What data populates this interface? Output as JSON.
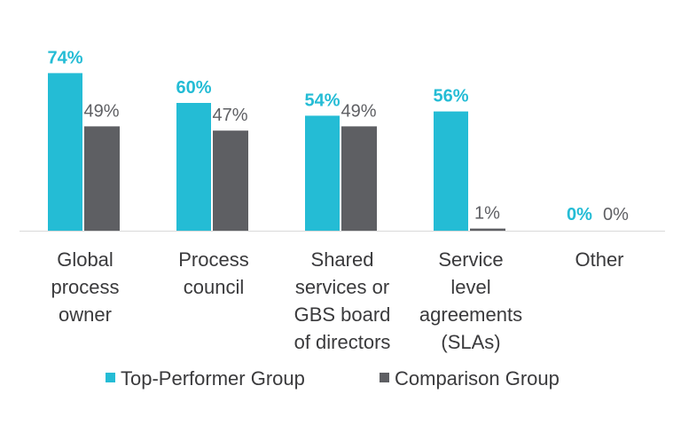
{
  "chart_data": {
    "type": "bar",
    "categories": [
      [
        "Global",
        "process",
        "owner"
      ],
      [
        "Process",
        "council"
      ],
      [
        "Shared",
        "services or",
        "GBS board",
        "of directors"
      ],
      [
        "Service",
        "level",
        "agreements",
        "(SLAs)"
      ],
      [
        "Other"
      ]
    ],
    "series": [
      {
        "name": "Top-Performer Group",
        "color": "#24BCD5",
        "values": [
          74,
          60,
          54,
          56,
          0
        ],
        "labels": [
          "74%",
          "60%",
          "54%",
          "56%",
          "0%"
        ]
      },
      {
        "name": "Comparison Group",
        "color": "#5E5F63",
        "values": [
          49,
          47,
          49,
          1,
          0
        ],
        "labels": [
          "49%",
          "47%",
          "49%",
          "1%",
          "0%"
        ]
      }
    ],
    "ylim": [
      0,
      80
    ],
    "grid": false,
    "legend": "bottom",
    "title": "",
    "xlabel": "",
    "ylabel": ""
  }
}
